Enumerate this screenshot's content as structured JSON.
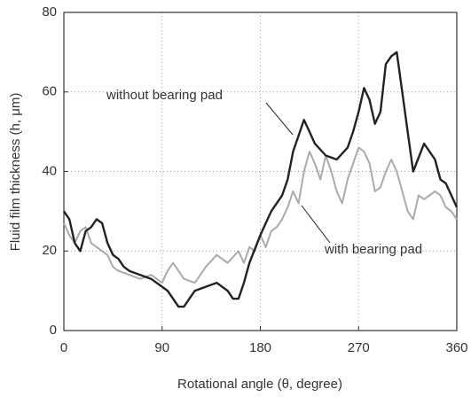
{
  "chart_data": {
    "type": "line",
    "xlabel": "Rotational angle (θ, degree)",
    "ylabel": "Fluid film thickness (h, μm)",
    "xlim": [
      0,
      360
    ],
    "xticks": [
      0,
      90,
      180,
      270,
      360
    ],
    "ylim": [
      0,
      80
    ],
    "yticks": [
      0,
      20,
      40,
      60,
      80
    ],
    "grid": true,
    "annotations": [
      "without bearing pad",
      "with bearing pad"
    ],
    "series": [
      {
        "color": "#222222",
        "x": [
          0,
          5,
          10,
          15,
          20,
          25,
          30,
          35,
          40,
          45,
          50,
          55,
          60,
          70,
          80,
          90,
          95,
          100,
          105,
          110,
          115,
          120,
          130,
          140,
          150,
          155,
          160,
          165,
          170,
          180,
          190,
          200,
          205,
          210,
          215,
          220,
          225,
          230,
          240,
          250,
          260,
          265,
          270,
          275,
          280,
          285,
          290,
          295,
          300,
          305,
          310,
          315,
          320,
          330,
          340,
          345,
          350,
          355,
          360
        ],
        "values": [
          30,
          28,
          22,
          20,
          25,
          26,
          28,
          27,
          22,
          19,
          18,
          16,
          15,
          14,
          13,
          11,
          10,
          8,
          6,
          6,
          8,
          10,
          11,
          12,
          10,
          8,
          8,
          12,
          17,
          24,
          30,
          34,
          38,
          45,
          49,
          53,
          50,
          47,
          44,
          43,
          46,
          50,
          55,
          61,
          58,
          52,
          55,
          67,
          69,
          70,
          60,
          50,
          40,
          47,
          43,
          38,
          37,
          34,
          31
        ]
      },
      {
        "color": "#aaaaaa",
        "x": [
          0,
          5,
          10,
          15,
          20,
          25,
          30,
          35,
          40,
          45,
          50,
          60,
          70,
          80,
          90,
          95,
          100,
          110,
          120,
          130,
          140,
          150,
          160,
          165,
          170,
          175,
          180,
          185,
          190,
          195,
          200,
          205,
          210,
          215,
          220,
          225,
          230,
          235,
          240,
          245,
          250,
          255,
          260,
          265,
          270,
          275,
          280,
          285,
          290,
          295,
          300,
          305,
          310,
          315,
          320,
          325,
          330,
          340,
          345,
          350,
          355,
          360
        ],
        "values": [
          27,
          24,
          22,
          25,
          26,
          22,
          21,
          20,
          19,
          16,
          15,
          14,
          13,
          14,
          12,
          15,
          17,
          13,
          12,
          16,
          19,
          17,
          20,
          17,
          21,
          20,
          24,
          21,
          25,
          26,
          28,
          31,
          35,
          32,
          40,
          45,
          42,
          38,
          44,
          40,
          35,
          32,
          38,
          42,
          46,
          45,
          42,
          35,
          36,
          40,
          43,
          40,
          35,
          30,
          28,
          34,
          33,
          35,
          34,
          31,
          30,
          28
        ]
      }
    ]
  }
}
